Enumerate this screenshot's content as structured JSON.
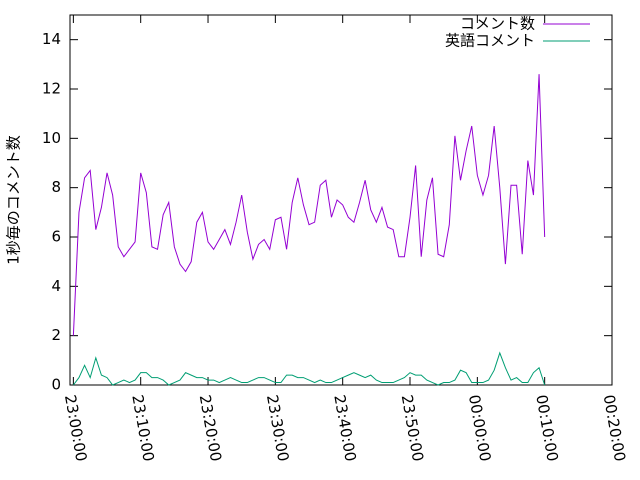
{
  "chart_data": {
    "type": "line",
    "ylabel": "1秒毎のコメント数",
    "x": [
      "23:00:00",
      "23:00:50",
      "23:01:40",
      "23:02:30",
      "23:03:20",
      "23:04:10",
      "23:05:00",
      "23:05:50",
      "23:06:40",
      "23:07:30",
      "23:08:20",
      "23:09:10",
      "23:10:00",
      "23:10:50",
      "23:11:40",
      "23:12:30",
      "23:13:20",
      "23:14:10",
      "23:15:00",
      "23:15:50",
      "23:16:40",
      "23:17:30",
      "23:18:20",
      "23:19:10",
      "23:20:00",
      "23:20:50",
      "23:21:40",
      "23:22:30",
      "23:23:20",
      "23:24:10",
      "23:25:00",
      "23:25:50",
      "23:26:40",
      "23:27:30",
      "23:28:20",
      "23:29:10",
      "23:30:00",
      "23:30:50",
      "23:31:40",
      "23:32:30",
      "23:33:20",
      "23:34:10",
      "23:35:00",
      "23:35:50",
      "23:36:40",
      "23:37:30",
      "23:38:20",
      "23:39:10",
      "23:40:00",
      "23:40:50",
      "23:41:40",
      "23:42:30",
      "23:43:20",
      "23:44:10",
      "23:45:00",
      "23:45:50",
      "23:46:40",
      "23:47:30",
      "23:48:20",
      "23:49:10",
      "23:50:00",
      "23:50:50",
      "23:51:40",
      "23:52:30",
      "23:53:20",
      "23:54:10",
      "23:55:00",
      "23:55:50",
      "23:56:40",
      "23:57:30",
      "23:58:20",
      "23:59:10",
      "00:00:00",
      "00:00:50",
      "00:01:40",
      "00:02:30",
      "00:03:20",
      "00:04:10",
      "00:05:00",
      "00:05:50",
      "00:06:40",
      "00:07:30",
      "00:08:20",
      "00:09:10",
      "00:10:00"
    ],
    "series": [
      {
        "name": "コメント数",
        "color": "#9400d3",
        "values": [
          2.0,
          7.0,
          8.4,
          8.7,
          6.3,
          7.2,
          8.6,
          7.7,
          5.6,
          5.2,
          5.5,
          5.8,
          8.6,
          7.8,
          5.6,
          5.5,
          6.9,
          7.4,
          5.6,
          4.9,
          4.6,
          5.0,
          6.6,
          7.0,
          5.8,
          5.5,
          5.9,
          6.3,
          5.7,
          6.6,
          7.7,
          6.2,
          5.1,
          5.7,
          5.9,
          5.5,
          6.7,
          6.8,
          5.5,
          7.4,
          8.4,
          7.3,
          6.5,
          6.6,
          8.1,
          8.3,
          6.8,
          7.5,
          7.3,
          6.8,
          6.6,
          7.4,
          8.3,
          7.1,
          6.6,
          7.2,
          6.4,
          6.3,
          5.2,
          5.2,
          6.8,
          8.9,
          5.2,
          7.5,
          8.4,
          5.3,
          5.2,
          6.5,
          10.1,
          8.3,
          9.5,
          10.5,
          8.5,
          7.7,
          8.5,
          10.5,
          8.0,
          4.9,
          8.1,
          8.1,
          5.3,
          9.1,
          7.7,
          12.6,
          6.0
        ]
      },
      {
        "name": "英語コメント",
        "color": "#009e73",
        "values": [
          0.0,
          0.3,
          0.8,
          0.3,
          1.1,
          0.4,
          0.3,
          0.0,
          0.1,
          0.2,
          0.1,
          0.2,
          0.5,
          0.5,
          0.3,
          0.3,
          0.2,
          0.0,
          0.1,
          0.2,
          0.5,
          0.4,
          0.3,
          0.3,
          0.2,
          0.2,
          0.1,
          0.2,
          0.3,
          0.2,
          0.1,
          0.1,
          0.2,
          0.3,
          0.3,
          0.2,
          0.1,
          0.1,
          0.4,
          0.4,
          0.3,
          0.3,
          0.2,
          0.1,
          0.2,
          0.1,
          0.1,
          0.2,
          0.3,
          0.4,
          0.5,
          0.4,
          0.3,
          0.4,
          0.2,
          0.1,
          0.1,
          0.1,
          0.2,
          0.3,
          0.5,
          0.4,
          0.4,
          0.2,
          0.1,
          0.0,
          0.1,
          0.1,
          0.2,
          0.6,
          0.5,
          0.1,
          0.1,
          0.1,
          0.2,
          0.6,
          1.3,
          0.7,
          0.2,
          0.3,
          0.1,
          0.1,
          0.5,
          0.7,
          0.0
        ]
      }
    ],
    "xlim": [
      "22:59:30",
      "00:20:00"
    ],
    "xticks": [
      "23:00:00",
      "23:10:00",
      "23:20:00",
      "23:30:00",
      "23:40:00",
      "23:50:00",
      "00:00:00",
      "00:10:00",
      "00:20:00"
    ],
    "ylim": [
      0,
      15
    ],
    "yticks": [
      0,
      2,
      4,
      6,
      8,
      10,
      12,
      14
    ],
    "legend": "top-right"
  }
}
